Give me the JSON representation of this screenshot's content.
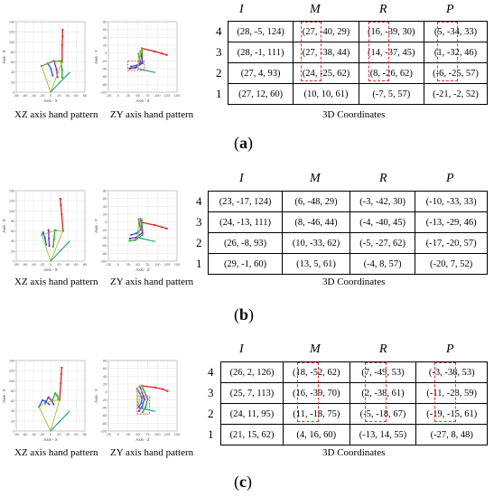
{
  "panels": [
    {
      "label": "a",
      "xz_caption": "XZ axis hand pattern",
      "zy_caption": "ZY axis hand pattern",
      "coord_caption": "3D Coordinates",
      "headers": [
        "I",
        "M",
        "R",
        "P"
      ],
      "rows": [
        {
          "n": "4",
          "cells": [
            "(28, -5, 124)",
            "(27, -40, 29)",
            "(16, -39, 30)",
            "(5,  -34, 33)"
          ]
        },
        {
          "n": "3",
          "cells": [
            "(28, -1, 111)",
            "(27, -38, 44)",
            "(14, -37, 45)",
            "(1,  -32, 46)"
          ]
        },
        {
          "n": "2",
          "cells": [
            "(27, 4, 93)",
            "(24, -25, 62)",
            "(8,  -26, 62)",
            "(-6, -25, 57)"
          ]
        },
        {
          "n": "1",
          "cells": [
            "(27, 12, 60)",
            "(10, 10,  61)",
            "(-7,  5,  57)",
            "(-21, -2,  52)"
          ]
        }
      ]
    },
    {
      "label": "b",
      "xz_caption": "XZ axis hand pattern",
      "zy_caption": "ZY axis hand pattern",
      "coord_caption": "3D Coordinates",
      "headers": [
        "I",
        "M",
        "R",
        "P"
      ],
      "rows": [
        {
          "n": "4",
          "cells": [
            "(23, -17, 124)",
            "(6, -48, 29)",
            "(-3, -42, 30)",
            "(-10, -33, 33)"
          ]
        },
        {
          "n": "3",
          "cells": [
            "(24, -13, 111)",
            "(8, -46, 44)",
            "(-4, -40, 45)",
            "(-13, -29, 46)"
          ]
        },
        {
          "n": "2",
          "cells": [
            "(26, -8, 93)",
            "(10, -33, 62)",
            "(-5, -27, 62)",
            "(-17, -20, 57)"
          ]
        },
        {
          "n": "1",
          "cells": [
            "(29, -1, 60)",
            "(13, 5, 61)",
            "(-4, 8, 57)",
            "(-20, 7, 52)"
          ]
        }
      ]
    },
    {
      "label": "c",
      "xz_caption": "XZ axis hand pattern",
      "zy_caption": "ZY axis hand pattern",
      "coord_caption": "3D Coordinates",
      "headers": [
        "I",
        "M",
        "R",
        "P"
      ],
      "rows": [
        {
          "n": "4",
          "cells": [
            "(26, 2, 126)",
            "(18, -52, 62)",
            "(7,  -49, 53)",
            "(-3,  -38, 53)"
          ]
        },
        {
          "n": "3",
          "cells": [
            "(25, 7, 113)",
            "(16, -39, 70)",
            "(2,  -38, 61)",
            "(-11, -28, 59)"
          ]
        },
        {
          "n": "2",
          "cells": [
            "(24, 11, 95)",
            "(11, -18, 75)",
            "(-5, -18, 67)",
            "(-19, -15, 61)"
          ]
        },
        {
          "n": "1",
          "cells": [
            "(21, 15, 62)",
            "(4,   16, 60)",
            "(-13, 14, 55)",
            "(-27, 8,  48)"
          ]
        }
      ]
    }
  ],
  "plot_text": {
    "xz_xlabel": "Axis - X",
    "xz_ylabel": "Axis - Z",
    "zy_xlabel": "Axis - Z",
    "zy_ylabel": "Axis - Y",
    "xz_xticks": [
      "-80",
      "-60",
      "-40",
      "-20",
      "0",
      "20",
      "40",
      "60",
      "80"
    ],
    "xz_yticks": [
      "140",
      "120",
      "100",
      "80",
      "60",
      "40",
      "20",
      "0"
    ],
    "zy_xticks": [
      "-25",
      "0",
      "25",
      "50",
      "75",
      "100",
      "125",
      "150"
    ],
    "zy_yticks": [
      "80",
      "60",
      "40",
      "20",
      "0",
      "-20",
      "-40",
      "-60",
      "-80",
      "-100"
    ]
  },
  "colors": {
    "index": "#e02020",
    "middle": "#20b020",
    "ring": "#9020d0",
    "pinky": "#2060e0",
    "thumb": "#20a0a0",
    "palm": "#a0c020",
    "highlight": "#e03030"
  }
}
